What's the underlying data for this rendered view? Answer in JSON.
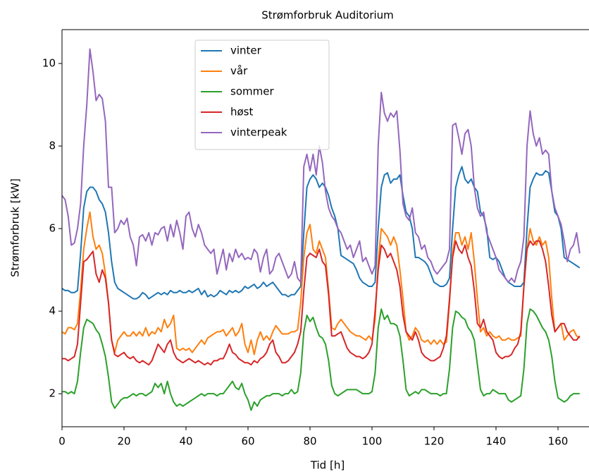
{
  "chart_data": {
    "type": "line",
    "title": "Strømforbruk Auditorium",
    "xlabel": "Tid [h]",
    "ylabel": "Strømforbruk [kW]",
    "xlim": [
      0,
      170
    ],
    "ylim": [
      1.2,
      10.82
    ],
    "xticks": [
      0,
      20,
      40,
      60,
      80,
      100,
      120,
      140,
      160
    ],
    "yticks": [
      2,
      4,
      6,
      8,
      10
    ],
    "legend": "upper center",
    "x": [
      0,
      1,
      2,
      3,
      4,
      5,
      6,
      7,
      8,
      9,
      10,
      11,
      12,
      13,
      14,
      15,
      16,
      17,
      18,
      19,
      20,
      21,
      22,
      23,
      24,
      25,
      26,
      27,
      28,
      29,
      30,
      31,
      32,
      33,
      34,
      35,
      36,
      37,
      38,
      39,
      40,
      41,
      42,
      43,
      44,
      45,
      46,
      47,
      48,
      49,
      50,
      51,
      52,
      53,
      54,
      55,
      56,
      57,
      58,
      59,
      60,
      61,
      62,
      63,
      64,
      65,
      66,
      67,
      68,
      69,
      70,
      71,
      72,
      73,
      74,
      75,
      76,
      77,
      78,
      79,
      80,
      81,
      82,
      83,
      84,
      85,
      86,
      87,
      88,
      89,
      90,
      91,
      92,
      93,
      94,
      95,
      96,
      97,
      98,
      99,
      100,
      101,
      102,
      103,
      104,
      105,
      106,
      107,
      108,
      109,
      110,
      111,
      112,
      113,
      114,
      115,
      116,
      117,
      118,
      119,
      120,
      121,
      122,
      123,
      124,
      125,
      126,
      127,
      128,
      129,
      130,
      131,
      132,
      133,
      134,
      135,
      136,
      137,
      138,
      139,
      140,
      141,
      142,
      143,
      144,
      145,
      146,
      147,
      148,
      149,
      150,
      151,
      152,
      153,
      154,
      155,
      156,
      157,
      158,
      159,
      160,
      161,
      162,
      163,
      164,
      165,
      166,
      167
    ],
    "series": [
      {
        "name": "vinter",
        "color": "#1f77b4",
        "values": [
          4.55,
          4.5,
          4.5,
          4.45,
          4.45,
          4.5,
          5.4,
          6.5,
          6.9,
          7.0,
          7.0,
          6.9,
          6.7,
          6.6,
          6.4,
          5.9,
          5.2,
          4.7,
          4.55,
          4.5,
          4.45,
          4.4,
          4.35,
          4.3,
          4.3,
          4.35,
          4.45,
          4.4,
          4.3,
          4.35,
          4.4,
          4.45,
          4.4,
          4.45,
          4.4,
          4.5,
          4.45,
          4.45,
          4.5,
          4.45,
          4.45,
          4.5,
          4.45,
          4.5,
          4.55,
          4.4,
          4.5,
          4.35,
          4.4,
          4.35,
          4.4,
          4.5,
          4.45,
          4.4,
          4.5,
          4.45,
          4.5,
          4.45,
          4.5,
          4.6,
          4.55,
          4.6,
          4.65,
          4.55,
          4.6,
          4.7,
          4.6,
          4.65,
          4.7,
          4.6,
          4.5,
          4.4,
          4.4,
          4.35,
          4.4,
          4.4,
          4.5,
          4.6,
          5.9,
          7.0,
          7.2,
          7.3,
          7.2,
          7.0,
          7.1,
          7.0,
          6.8,
          6.5,
          6.3,
          6.0,
          5.35,
          5.3,
          5.25,
          5.2,
          5.15,
          5.0,
          4.8,
          4.7,
          4.65,
          4.6,
          4.6,
          4.7,
          6.0,
          7.0,
          7.3,
          7.35,
          7.1,
          7.2,
          7.2,
          7.3,
          6.8,
          6.4,
          6.3,
          6.0,
          5.3,
          5.3,
          5.25,
          5.2,
          5.1,
          4.9,
          4.7,
          4.65,
          4.6,
          4.6,
          4.65,
          4.8,
          6.0,
          7.0,
          7.3,
          7.5,
          7.2,
          7.1,
          7.2,
          7.0,
          6.9,
          6.4,
          6.3,
          6.0,
          5.3,
          5.25,
          5.3,
          5.2,
          5.0,
          4.8,
          4.7,
          4.65,
          4.6,
          4.6,
          4.6,
          4.7,
          6.0,
          7.0,
          7.2,
          7.35,
          7.3,
          7.3,
          7.4,
          7.35,
          6.9,
          6.4,
          6.3,
          6.0,
          5.3,
          5.25,
          5.2,
          5.15,
          5.1,
          5.05
        ]
      },
      {
        "name": "vår",
        "color": "#ff7f0e",
        "values": [
          3.5,
          3.45,
          3.6,
          3.6,
          3.55,
          3.7,
          4.5,
          5.5,
          6.0,
          6.4,
          5.8,
          5.5,
          5.6,
          5.4,
          4.9,
          4.2,
          3.3,
          3.0,
          3.3,
          3.4,
          3.5,
          3.4,
          3.4,
          3.5,
          3.4,
          3.5,
          3.4,
          3.6,
          3.4,
          3.5,
          3.45,
          3.6,
          3.5,
          3.8,
          3.6,
          3.7,
          3.9,
          3.1,
          3.05,
          3.1,
          3.05,
          3.1,
          3.0,
          3.1,
          3.2,
          3.3,
          3.2,
          3.35,
          3.4,
          3.45,
          3.5,
          3.5,
          3.55,
          3.4,
          3.5,
          3.6,
          3.4,
          3.5,
          3.7,
          3.2,
          3.0,
          3.3,
          2.95,
          3.3,
          3.5,
          3.3,
          3.4,
          3.3,
          3.5,
          3.65,
          3.55,
          3.45,
          3.45,
          3.45,
          3.5,
          3.5,
          3.55,
          4.2,
          5.3,
          5.9,
          6.1,
          5.5,
          5.4,
          5.7,
          5.5,
          5.3,
          4.5,
          3.6,
          3.55,
          3.7,
          3.8,
          3.7,
          3.6,
          3.5,
          3.45,
          3.4,
          3.4,
          3.35,
          3.3,
          3.4,
          3.3,
          3.8,
          5.2,
          6.0,
          5.9,
          5.8,
          5.6,
          5.8,
          5.6,
          5.0,
          4.3,
          3.5,
          3.3,
          3.4,
          3.6,
          3.5,
          3.3,
          3.25,
          3.3,
          3.2,
          3.3,
          3.2,
          3.3,
          3.2,
          3.25,
          4.2,
          5.4,
          5.9,
          5.9,
          5.6,
          5.8,
          5.5,
          5.9,
          5.2,
          4.3,
          3.5,
          3.6,
          3.4,
          3.5,
          3.4,
          3.35,
          3.4,
          3.3,
          3.3,
          3.35,
          3.3,
          3.3,
          3.35,
          3.4,
          4.6,
          5.5,
          6.0,
          5.7,
          5.6,
          5.8,
          5.6,
          5.7,
          5.3,
          4.3,
          3.5,
          3.6,
          3.7,
          3.3,
          3.4,
          3.5,
          3.55,
          3.4,
          3.35
        ]
      },
      {
        "name": "sommer",
        "color": "#2ca02c",
        "values": [
          2.05,
          2.05,
          2.0,
          2.05,
          2.0,
          2.3,
          3.0,
          3.6,
          3.8,
          3.75,
          3.7,
          3.55,
          3.45,
          3.2,
          2.9,
          2.4,
          1.8,
          1.65,
          1.75,
          1.85,
          1.9,
          1.9,
          1.95,
          2.0,
          1.95,
          2.0,
          2.0,
          1.95,
          2.0,
          2.05,
          2.25,
          2.15,
          2.25,
          2.0,
          2.3,
          2.0,
          1.8,
          1.7,
          1.75,
          1.7,
          1.75,
          1.8,
          1.85,
          1.9,
          1.95,
          2.0,
          1.95,
          2.0,
          2.0,
          2.0,
          1.95,
          2.0,
          2.0,
          2.1,
          2.2,
          2.3,
          2.15,
          2.1,
          2.25,
          2.0,
          1.85,
          1.6,
          1.8,
          1.7,
          1.85,
          1.9,
          1.95,
          1.95,
          2.0,
          2.0,
          2.0,
          1.95,
          2.0,
          2.0,
          2.1,
          2.0,
          2.05,
          2.5,
          3.5,
          3.9,
          3.75,
          3.85,
          3.6,
          3.4,
          3.35,
          3.2,
          2.8,
          2.2,
          2.0,
          1.95,
          2.0,
          2.05,
          2.1,
          2.1,
          2.1,
          2.1,
          2.05,
          2.0,
          2.0,
          2.0,
          2.05,
          2.5,
          3.6,
          4.05,
          3.8,
          3.9,
          3.7,
          3.7,
          3.65,
          3.4,
          2.8,
          2.1,
          1.95,
          2.0,
          2.05,
          2.0,
          2.1,
          2.1,
          2.05,
          2.0,
          2.0,
          2.0,
          1.95,
          2.0,
          2.0,
          2.6,
          3.6,
          4.0,
          3.95,
          3.85,
          3.8,
          3.6,
          3.5,
          3.3,
          2.7,
          2.1,
          1.95,
          2.0,
          2.0,
          2.1,
          2.05,
          2.0,
          2.0,
          2.0,
          1.85,
          1.8,
          1.85,
          1.9,
          1.95,
          2.6,
          3.7,
          4.05,
          4.0,
          3.9,
          3.75,
          3.6,
          3.5,
          3.3,
          2.9,
          2.3,
          1.9,
          1.85,
          1.8,
          1.85,
          1.95,
          2.0,
          2.0,
          2.0
        ]
      },
      {
        "name": "høst",
        "color": "#d62728",
        "values": [
          2.85,
          2.85,
          2.8,
          2.85,
          2.9,
          3.2,
          4.2,
          5.2,
          5.25,
          5.35,
          5.45,
          4.9,
          4.7,
          5.0,
          4.8,
          4.2,
          3.3,
          2.95,
          2.9,
          2.95,
          3.0,
          2.9,
          2.85,
          2.9,
          2.8,
          2.75,
          2.8,
          2.75,
          2.7,
          2.8,
          3.0,
          3.2,
          3.1,
          3.0,
          3.2,
          3.3,
          3.0,
          2.85,
          2.8,
          2.75,
          2.8,
          2.85,
          2.8,
          2.75,
          2.8,
          2.75,
          2.7,
          2.75,
          2.7,
          2.8,
          2.8,
          2.85,
          2.85,
          3.0,
          3.2,
          3.0,
          2.95,
          2.85,
          2.8,
          2.75,
          2.75,
          2.7,
          2.8,
          2.75,
          2.85,
          2.9,
          3.0,
          3.2,
          3.3,
          3.0,
          2.9,
          2.75,
          2.75,
          2.8,
          2.9,
          3.0,
          3.2,
          3.5,
          4.5,
          5.3,
          5.4,
          5.35,
          5.3,
          5.5,
          5.2,
          5.1,
          4.4,
          3.4,
          3.4,
          3.45,
          3.5,
          3.3,
          3.1,
          3.0,
          2.95,
          2.9,
          2.9,
          2.85,
          2.9,
          3.0,
          3.2,
          4.0,
          5.0,
          5.6,
          5.5,
          5.3,
          5.4,
          5.2,
          5.0,
          4.6,
          3.9,
          3.5,
          3.4,
          3.3,
          3.5,
          3.3,
          3.0,
          2.9,
          2.85,
          2.8,
          2.8,
          2.85,
          2.9,
          3.1,
          3.4,
          4.3,
          5.3,
          5.7,
          5.5,
          5.4,
          5.6,
          5.3,
          5.1,
          4.5,
          3.7,
          3.6,
          3.8,
          3.5,
          3.4,
          3.3,
          3.0,
          2.9,
          2.85,
          2.9,
          2.9,
          2.95,
          3.1,
          3.2,
          3.5,
          4.6,
          5.5,
          5.7,
          5.6,
          5.7,
          5.7,
          5.5,
          5.2,
          4.6,
          3.9,
          3.5,
          3.6,
          3.7,
          3.7,
          3.5,
          3.4,
          3.3,
          3.3,
          3.4
        ]
      },
      {
        "name": "vinterpeak",
        "color": "#9467bd",
        "values": [
          6.8,
          6.7,
          6.3,
          5.6,
          5.65,
          6.0,
          6.6,
          8.0,
          9.0,
          10.35,
          9.8,
          9.1,
          9.25,
          9.15,
          8.6,
          7.0,
          7.0,
          5.9,
          6.0,
          6.2,
          6.1,
          6.25,
          5.8,
          5.6,
          5.1,
          5.8,
          5.85,
          5.7,
          5.9,
          5.6,
          5.9,
          5.85,
          6.0,
          6.05,
          5.7,
          6.1,
          5.8,
          6.2,
          5.9,
          5.5,
          6.3,
          6.4,
          6.0,
          5.8,
          6.1,
          5.9,
          5.6,
          5.5,
          5.4,
          5.5,
          4.9,
          5.2,
          5.5,
          5.0,
          5.4,
          5.2,
          5.5,
          5.3,
          5.4,
          5.25,
          5.3,
          5.25,
          5.5,
          5.4,
          4.95,
          5.3,
          5.5,
          4.9,
          5.0,
          5.3,
          5.4,
          5.2,
          5.0,
          4.8,
          4.9,
          5.2,
          4.8,
          4.7,
          7.5,
          7.8,
          7.4,
          7.8,
          7.3,
          8.0,
          7.6,
          6.9,
          6.5,
          6.3,
          6.2,
          6.0,
          5.9,
          5.7,
          5.5,
          5.6,
          5.3,
          5.5,
          5.7,
          5.2,
          5.3,
          5.1,
          4.9,
          5.1,
          8.0,
          9.3,
          8.8,
          8.6,
          8.8,
          8.7,
          8.85,
          7.9,
          6.6,
          6.3,
          6.2,
          6.5,
          5.9,
          5.8,
          5.5,
          5.6,
          5.3,
          5.2,
          5.0,
          4.9,
          5.0,
          5.1,
          5.2,
          5.5,
          8.5,
          8.55,
          8.2,
          7.8,
          8.3,
          8.4,
          8.0,
          7.0,
          6.5,
          6.3,
          6.4,
          5.9,
          5.7,
          5.5,
          5.3,
          5.0,
          4.9,
          4.8,
          4.7,
          4.8,
          4.7,
          5.0,
          5.2,
          5.8,
          8.0,
          8.85,
          8.3,
          8.0,
          8.2,
          7.8,
          7.9,
          7.8,
          6.9,
          6.5,
          6.3,
          6.1,
          5.7,
          5.2,
          5.5,
          5.6,
          5.9,
          5.4
        ]
      }
    ]
  }
}
